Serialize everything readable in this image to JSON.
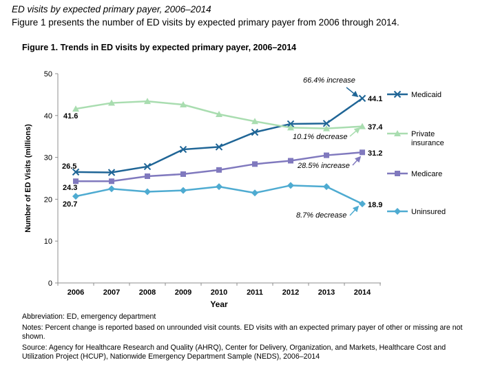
{
  "header": {
    "section_title": "ED visits by expected primary payer, 2006–2014",
    "intro": "Figure 1 presents the number of ED visits by expected primary payer from 2006 through 2014."
  },
  "chart_data": {
    "type": "line",
    "title": "Figure 1. Trends in ED visits by expected primary payer, 2006–2014",
    "xlabel": "Year",
    "ylabel": "Number of ED Visits (millions)",
    "categories": [
      "2006",
      "2007",
      "2008",
      "2009",
      "2010",
      "2011",
      "2012",
      "2013",
      "2014"
    ],
    "ylim": [
      0,
      50
    ],
    "yticks": [
      0,
      10,
      20,
      30,
      40,
      50
    ],
    "grid": false,
    "series": [
      {
        "name": "Medicaid",
        "color": "#1f6596",
        "marker": "x",
        "values": [
          26.5,
          26.4,
          27.8,
          31.9,
          32.5,
          36.0,
          38.0,
          38.1,
          44.1
        ],
        "start_label": "26.5",
        "end_label": "44.1",
        "change_label": "66.4% increase"
      },
      {
        "name": "Private insurance",
        "color": "#a9ddb0",
        "marker": "triangle",
        "values": [
          41.6,
          43.0,
          43.4,
          42.6,
          40.3,
          38.6,
          37.1,
          36.9,
          37.4
        ],
        "start_label": "41.6",
        "end_label": "37.4",
        "change_label": "10.1% decrease"
      },
      {
        "name": "Medicare",
        "color": "#8079be",
        "marker": "square",
        "values": [
          24.3,
          24.3,
          25.5,
          26.0,
          27.0,
          28.4,
          29.2,
          30.5,
          31.2
        ],
        "start_label": "24.3",
        "end_label": "31.2",
        "change_label": "28.5% increase"
      },
      {
        "name": "Uninsured",
        "color": "#4eabd1",
        "marker": "diamond",
        "values": [
          20.7,
          22.5,
          21.8,
          22.1,
          23.0,
          21.5,
          23.3,
          23.0,
          18.9
        ],
        "start_label": "20.7",
        "end_label": "18.9",
        "change_label": "8.7% decrease"
      }
    ]
  },
  "notes": {
    "abbreviation": "Abbreviation: ED, emergency department",
    "notes_text": "Notes: Percent change is reported based on unrounded visit counts. ED visits with an expected primary payer of other or missing are not shown.",
    "source": "Source: Agency for Healthcare Research and Quality (AHRQ), Center for Delivery, Organization, and Markets, Healthcare Cost and Utilization Project (HCUP), Nationwide Emergency Department Sample (NEDS), 2006–2014"
  }
}
